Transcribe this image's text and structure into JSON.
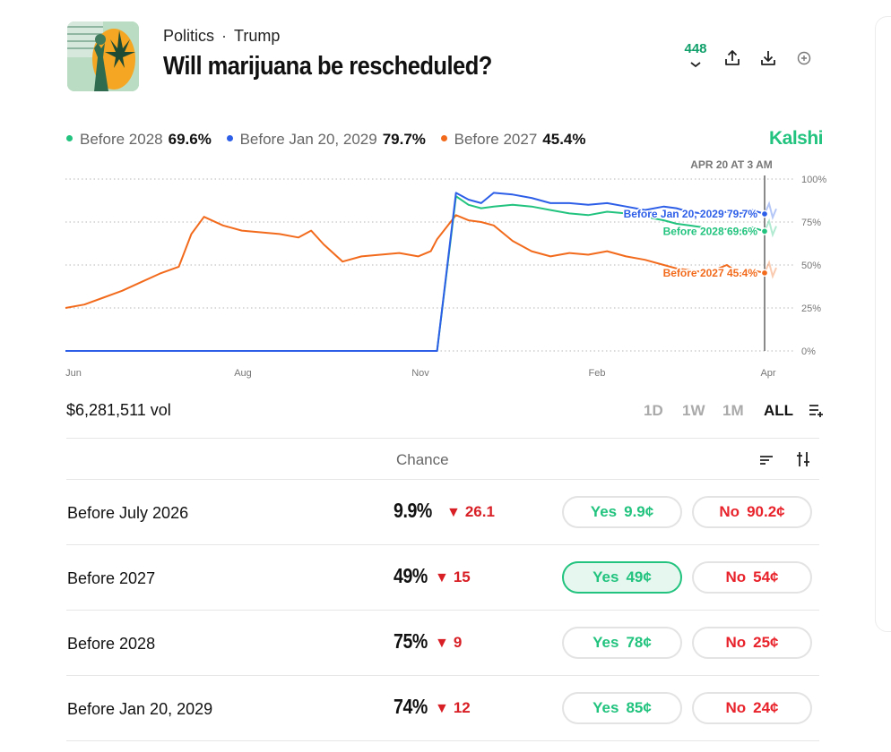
{
  "header": {
    "category": "Politics",
    "subcategory": "Trump",
    "title": "Will marijuana be rescheduled?",
    "count": "448"
  },
  "legend": [
    {
      "name": "Before 2028",
      "value": "69.6%",
      "color": "#22c37e"
    },
    {
      "name": "Before Jan 20, 2029",
      "value": "79.7%",
      "color": "#2c5ee8"
    },
    {
      "name": "Before 2027",
      "value": "45.4%",
      "color": "#f26b1d"
    }
  ],
  "brand": "Kalshi",
  "volume": "$6,281,511 vol",
  "ranges": [
    "1D",
    "1W",
    "1M",
    "ALL"
  ],
  "active_range": "ALL",
  "table": {
    "chance_header": "Chance",
    "rows": [
      {
        "label": "Before July 2026",
        "chance": "9.9%",
        "change": "26.1",
        "yes": "Yes",
        "yes_price": "9.9¢",
        "no": "No",
        "no_price": "90.2¢",
        "selected": false
      },
      {
        "label": "Before 2027",
        "chance": "49%",
        "change": "15",
        "yes": "Yes",
        "yes_price": "49¢",
        "no": "No",
        "no_price": "54¢",
        "selected": true
      },
      {
        "label": "Before 2028",
        "chance": "75%",
        "change": "9",
        "yes": "Yes",
        "yes_price": "78¢",
        "no": "No",
        "no_price": "25¢",
        "selected": false
      },
      {
        "label": "Before Jan 20, 2029",
        "chance": "74%",
        "change": "12",
        "yes": "Yes",
        "yes_price": "85¢",
        "no": "No",
        "no_price": "24¢",
        "selected": false
      }
    ]
  },
  "chart_data": {
    "type": "line",
    "hover_label": "APR 20 AT 3 AM",
    "x_tick_labels": [
      "Jun",
      "Aug",
      "Nov",
      "Feb",
      "Apr"
    ],
    "y_tick_labels": [
      "100%",
      "75%",
      "50%",
      "25%",
      "0%"
    ],
    "ylim": [
      0,
      100
    ],
    "end_labels": [
      {
        "text": "Before Jan 20, 2029 79.7%",
        "color": "#2c5ee8",
        "value": 79.7
      },
      {
        "text": "Before 2028 69.6%",
        "color": "#22c37e",
        "value": 69.6
      },
      {
        "text": "Before 2027 45.4%",
        "color": "#f26b1d",
        "value": 45.4
      }
    ],
    "x": [
      0,
      3,
      6,
      9,
      12,
      15,
      18,
      20,
      22,
      25,
      28,
      31,
      34,
      37,
      39,
      41,
      44,
      47,
      50,
      53,
      56,
      58,
      59,
      62,
      64,
      66,
      68,
      71,
      74,
      77,
      80,
      83,
      86,
      89,
      92,
      95,
      97,
      99,
      101,
      103,
      105,
      107,
      109,
      111
    ],
    "series": [
      {
        "name": "Before 2027",
        "color": "#f26b1d",
        "values": [
          25,
          27,
          31,
          35,
          40,
          45,
          49,
          68,
          78,
          73,
          70,
          69,
          68,
          66,
          70,
          62,
          52,
          55,
          56,
          57,
          55,
          58,
          65,
          79,
          76,
          75,
          73,
          64,
          58,
          55,
          57,
          56,
          58,
          55,
          53,
          50,
          48,
          47,
          46,
          47,
          50,
          45,
          47,
          45.4
        ]
      },
      {
        "name": "Before 2028",
        "color": "#22c37e",
        "values": [
          0,
          0,
          0,
          0,
          0,
          0,
          0,
          0,
          0,
          0,
          0,
          0,
          0,
          0,
          0,
          0,
          0,
          0,
          0,
          0,
          0,
          0,
          0,
          90,
          85,
          83,
          84,
          85,
          84,
          82,
          80,
          79,
          81,
          80,
          78,
          76,
          74,
          73,
          72,
          70,
          71,
          70,
          72,
          69.6
        ]
      },
      {
        "name": "Before Jan 20, 2029",
        "color": "#2c5ee8",
        "values": [
          0,
          0,
          0,
          0,
          0,
          0,
          0,
          0,
          0,
          0,
          0,
          0,
          0,
          0,
          0,
          0,
          0,
          0,
          0,
          0,
          0,
          0,
          0,
          92,
          88,
          86,
          92,
          91,
          89,
          86,
          86,
          85,
          86,
          84,
          82,
          84,
          83,
          81,
          80,
          79,
          81,
          80,
          82,
          79.7
        ]
      }
    ]
  }
}
